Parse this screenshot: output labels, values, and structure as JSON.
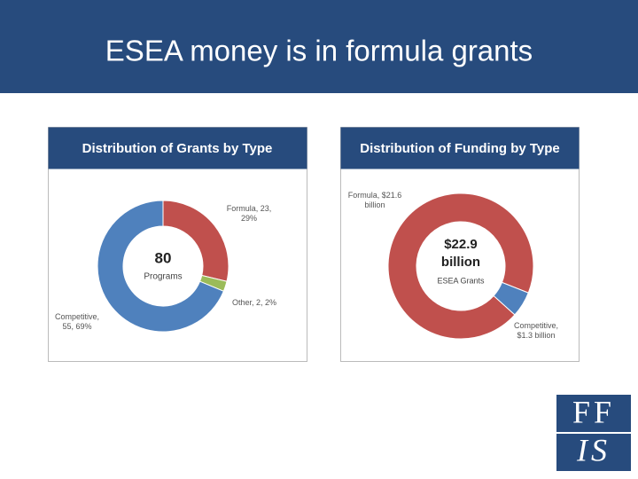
{
  "title": "ESEA money is in formula grants",
  "logo": {
    "top": "FF",
    "bottom": "IS"
  },
  "chart_data": [
    {
      "type": "pie",
      "title": "Distribution of Grants by Type",
      "categories": [
        "Formula",
        "Other",
        "Competitive"
      ],
      "values": [
        23,
        2,
        55
      ],
      "value_labels": [
        "Formula, 23, 29%",
        "Other, 2, 2%",
        "Competitive, 55, 69%"
      ],
      "colors": [
        "#c0504d",
        "#9bbb59",
        "#4f81bd"
      ],
      "center_value": 80,
      "center_text": "Programs"
    },
    {
      "type": "pie",
      "title": "Distribution of Funding by Type",
      "categories": [
        "Formula",
        "Competitive"
      ],
      "values": [
        21.6,
        1.3
      ],
      "value_labels": [
        "Formula, $21.6 billion",
        "Competitive, $1.3 billion"
      ],
      "colors": [
        "#c0504d",
        "#4f81bd"
      ],
      "center_value": {
        "value": 22.9,
        "label": "$22.9 billion"
      },
      "center_text": "ESEA Grants"
    }
  ]
}
